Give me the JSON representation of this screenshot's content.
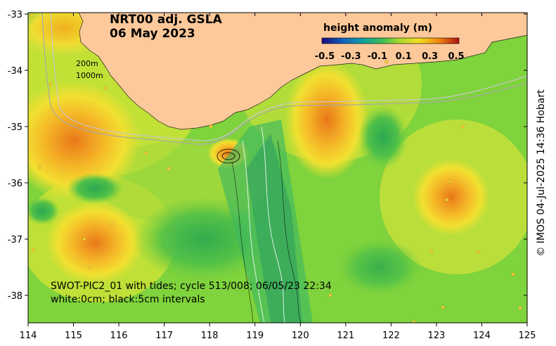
{
  "map": {
    "title_line1": "NRT00 adj. GSLA",
    "title_line2": "06 May 2023",
    "x_ticks": [
      "114",
      "115",
      "116",
      "117",
      "118",
      "119",
      "120",
      "121",
      "122",
      "123",
      "124",
      "125"
    ],
    "y_ticks": [
      "-33",
      "-34",
      "-35",
      "-36",
      "-37",
      "-38"
    ],
    "colorbar": {
      "title": "height anomaly (m)",
      "ticks": [
        "-0.5",
        "-0.3",
        "-0.1",
        "0.1",
        "0.3",
        "0.5"
      ],
      "range": [
        -0.5,
        0.5
      ]
    },
    "depth_labels": [
      "200m",
      "1000m"
    ],
    "swath_line1": "SWOT-PIC2_01 with tides; cycle 513/008; 06/05/23 22:34",
    "swath_line2": "white:0cm; black:5cm intervals",
    "copyright": "© IMOS 04-Jul-2025 14:36 Hobart"
  },
  "colors": {
    "land": "#fdc99a",
    "ocean_base": "#7fd33c",
    "anomaly_high": "#f0a020",
    "anomaly_peak": "#e06a10",
    "anomaly_low": "#2fb45a"
  }
}
